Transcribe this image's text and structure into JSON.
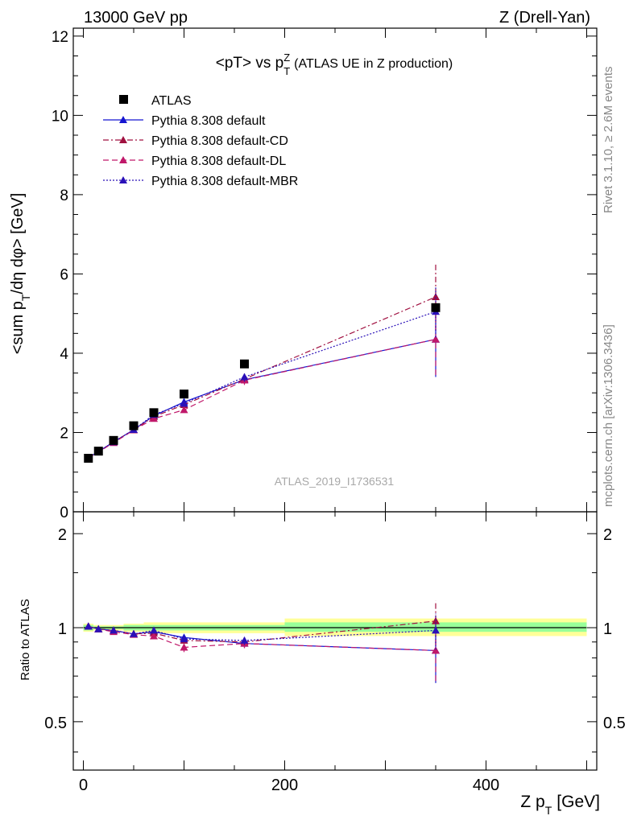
{
  "header": {
    "energy": "13000 GeV pp",
    "process": "Z (Drell-Yan)"
  },
  "side_text": {
    "rivet": "Rivet 3.1.10, ≥ 2.6M events",
    "mcplots": "mcplots.cern.ch [arXiv:1306.3436]"
  },
  "watermark": "ATLAS_2019_I1736531",
  "colors": {
    "data": "#000000",
    "default": "#1515d0",
    "default_cd": "#a01040",
    "default_dl": "#c0186a",
    "default_mbr": "#2a10b8",
    "band_yellow": "#ffff99",
    "band_green": "#99ff99"
  },
  "chart_data": [
    {
      "type": "scatter",
      "panel": "main",
      "title_main": "<pT> vs p",
      "title_sub": "T",
      "title_sup": "Z",
      "title_suffix": "(ATLAS UE in Z production)",
      "ylabel_main": "<sum p",
      "ylabel_sub": "T",
      "ylabel_suffix": "/dη dφ> [GeV]",
      "xlim": [
        -10,
        510
      ],
      "ylim": [
        0,
        12.2
      ],
      "yticks": [
        0,
        2,
        4,
        6,
        8,
        10,
        12
      ],
      "log_y": false,
      "legend_position": "top-left",
      "x": [
        5,
        15,
        30,
        50,
        70,
        100,
        160,
        350
      ],
      "series": [
        {
          "name": "ATLAS",
          "key": "data",
          "style": "square",
          "values": [
            1.35,
            1.53,
            1.8,
            2.17,
            2.5,
            2.97,
            3.73,
            5.15
          ]
        },
        {
          "name": "Pythia 8.308 default",
          "key": "default",
          "style": "solid",
          "values": [
            1.36,
            1.52,
            1.76,
            2.07,
            2.42,
            2.77,
            3.33,
            4.35
          ],
          "yerr": [
            0.03,
            0.03,
            0.03,
            0.04,
            0.05,
            0.06,
            0.1,
            0.95
          ]
        },
        {
          "name": "Pythia 8.308 default-CD",
          "key": "default_cd",
          "style": "dashdot",
          "values": [
            1.36,
            1.52,
            1.76,
            2.07,
            2.4,
            2.7,
            3.35,
            5.42
          ],
          "yerr": [
            0.03,
            0.03,
            0.03,
            0.04,
            0.05,
            0.07,
            0.12,
            0.85
          ]
        },
        {
          "name": "Pythia 8.308 default-DL",
          "key": "default_dl",
          "style": "dashed",
          "values": [
            1.36,
            1.51,
            1.74,
            2.06,
            2.35,
            2.57,
            3.32,
            4.35
          ],
          "yerr": [
            0.03,
            0.03,
            0.03,
            0.04,
            0.05,
            0.07,
            0.12,
            0.9
          ]
        },
        {
          "name": "Pythia 8.308 default-MBR",
          "key": "default_mbr",
          "style": "dotted",
          "values": [
            1.36,
            1.52,
            1.76,
            2.07,
            2.45,
            2.73,
            3.4,
            5.05
          ],
          "yerr": [
            0.03,
            0.03,
            0.03,
            0.04,
            0.05,
            0.06,
            0.12,
            0.65
          ]
        }
      ]
    },
    {
      "type": "scatter",
      "panel": "ratio",
      "ylabel": "Ratio to ATLAS",
      "xlabel_main": "Z p",
      "xlabel_sub": "T",
      "xlabel_suffix": "[GeV]",
      "xlim": [
        -10,
        510
      ],
      "ylim": [
        0.35,
        2.35
      ],
      "log_y": true,
      "yticks": [
        0.5,
        1,
        2
      ],
      "xticks": [
        0,
        200,
        400
      ],
      "bins": [
        [
          0,
          10
        ],
        [
          10,
          20
        ],
        [
          20,
          40
        ],
        [
          40,
          60
        ],
        [
          60,
          80
        ],
        [
          80,
          120
        ],
        [
          120,
          200
        ],
        [
          200,
          500
        ]
      ],
      "band_yellow": [
        [
          0.97,
          1.03
        ],
        [
          0.98,
          1.02
        ],
        [
          0.98,
          1.02
        ],
        [
          0.97,
          1.03
        ],
        [
          0.96,
          1.04
        ],
        [
          0.96,
          1.04
        ],
        [
          0.96,
          1.04
        ],
        [
          0.94,
          1.07
        ]
      ],
      "band_green": [
        [
          0.98,
          1.02
        ],
        [
          0.99,
          1.01
        ],
        [
          0.99,
          1.01
        ],
        [
          0.98,
          1.02
        ],
        [
          0.98,
          1.02
        ],
        [
          0.98,
          1.02
        ],
        [
          0.98,
          1.02
        ],
        [
          0.97,
          1.04
        ]
      ],
      "x": [
        5,
        15,
        30,
        50,
        70,
        100,
        160,
        350
      ],
      "series": [
        {
          "name": "Pythia 8.308 default",
          "key": "default",
          "style": "solid",
          "values": [
            1.01,
            0.99,
            0.98,
            0.955,
            0.97,
            0.93,
            0.89,
            0.845
          ],
          "yerr": [
            0.02,
            0.02,
            0.02,
            0.02,
            0.02,
            0.02,
            0.03,
            0.18
          ]
        },
        {
          "name": "Pythia 8.308 default-CD",
          "key": "default_cd",
          "style": "dashdot",
          "values": [
            1.01,
            0.99,
            0.98,
            0.955,
            0.96,
            0.91,
            0.9,
            1.05
          ],
          "yerr": [
            0.02,
            0.02,
            0.02,
            0.02,
            0.02,
            0.03,
            0.03,
            0.17
          ]
        },
        {
          "name": "Pythia 8.308 default-DL",
          "key": "default_dl",
          "style": "dashed",
          "values": [
            1.01,
            0.99,
            0.97,
            0.95,
            0.94,
            0.865,
            0.89,
            0.845
          ],
          "yerr": [
            0.02,
            0.02,
            0.02,
            0.02,
            0.02,
            0.03,
            0.03,
            0.17
          ]
        },
        {
          "name": "Pythia 8.308 default-MBR",
          "key": "default_mbr",
          "style": "dotted",
          "values": [
            1.01,
            0.99,
            0.98,
            0.955,
            0.98,
            0.92,
            0.91,
            0.98
          ],
          "yerr": [
            0.02,
            0.02,
            0.02,
            0.02,
            0.02,
            0.02,
            0.03,
            0.13
          ]
        }
      ]
    }
  ]
}
